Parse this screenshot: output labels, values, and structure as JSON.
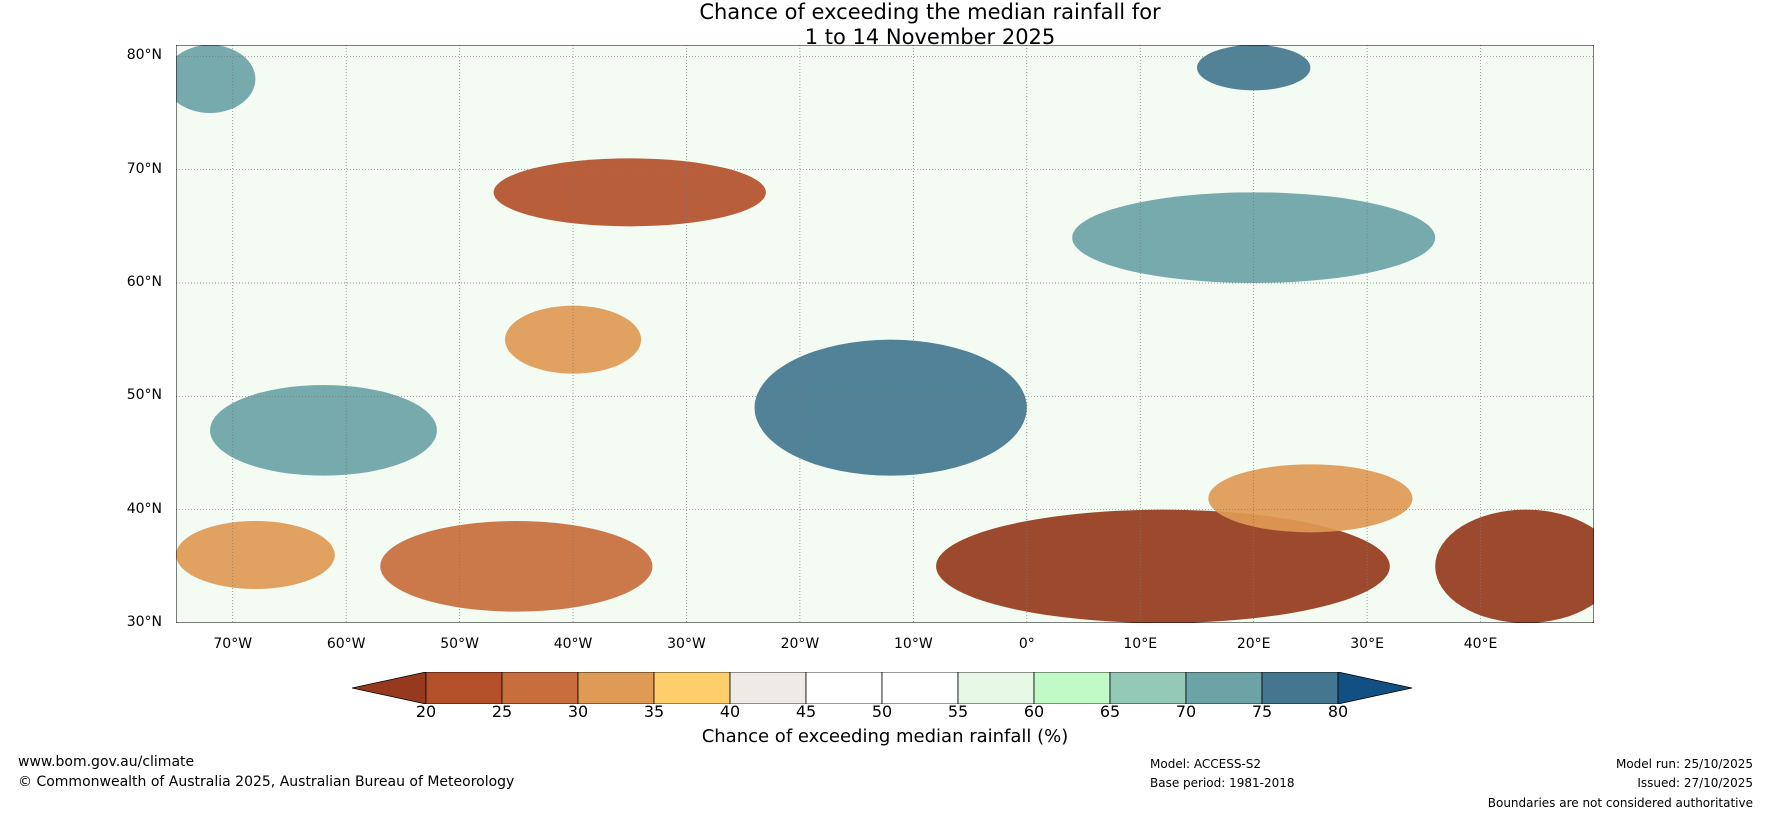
{
  "title": {
    "line1": "Chance of exceeding the median rainfall for",
    "line2": "1 to 14 November 2025"
  },
  "map": {
    "lat_labels": [
      "80°N",
      "70°N",
      "60°N",
      "50°N",
      "40°N",
      "30°N"
    ],
    "lat_values": [
      80,
      70,
      60,
      50,
      40,
      30
    ],
    "lon_labels": [
      "70°W",
      "60°W",
      "50°W",
      "40°W",
      "30°W",
      "20°W",
      "10°W",
      "0°",
      "10°E",
      "20°E",
      "30°E",
      "40°E"
    ],
    "lon_values": [
      -70,
      -60,
      -50,
      -40,
      -30,
      -20,
      -10,
      0,
      10,
      20,
      30,
      40
    ],
    "lon_range": [
      -75,
      50
    ],
    "lat_range": [
      30,
      81
    ],
    "regions": [
      {
        "name": "med-north-africa-dry",
        "lon": 12,
        "lat": 35,
        "rx": 20,
        "ry": 5,
        "bin": 0
      },
      {
        "name": "middle-east-dry",
        "lon": 44,
        "lat": 35,
        "rx": 8,
        "ry": 5,
        "bin": 0
      },
      {
        "name": "balkans-dry",
        "lon": 25,
        "lat": 41,
        "rx": 9,
        "ry": 3,
        "bin": 3
      },
      {
        "name": "greenland-dry",
        "lon": -35,
        "lat": 68,
        "rx": 12,
        "ry": 3,
        "bin": 1
      },
      {
        "name": "north-atlantic-dry",
        "lon": -40,
        "lat": 55,
        "rx": 6,
        "ry": 3,
        "bin": 3
      },
      {
        "name": "subtropical-atlantic-dry",
        "lon": -45,
        "lat": 35,
        "rx": 12,
        "ry": 4,
        "bin": 2
      },
      {
        "name": "west-atlantic-dry",
        "lon": -68,
        "lat": 36,
        "rx": 7,
        "ry": 3,
        "bin": 3
      },
      {
        "name": "britain-wet",
        "lon": -12,
        "lat": 49,
        "rx": 12,
        "ry": 6,
        "bin": 12
      },
      {
        "name": "scandinavia-wet",
        "lon": 20,
        "lat": 64,
        "rx": 16,
        "ry": 4,
        "bin": 11
      },
      {
        "name": "labrador-wet",
        "lon": -62,
        "lat": 47,
        "rx": 10,
        "ry": 4,
        "bin": 11
      },
      {
        "name": "arctic-wet",
        "lon": -72,
        "lat": 78,
        "rx": 4,
        "ry": 3,
        "bin": 11
      },
      {
        "name": "svalbard-wet",
        "lon": 20,
        "lat": 79,
        "rx": 5,
        "ry": 2,
        "bin": 12
      }
    ]
  },
  "colorbar": {
    "colors": [
      "#96391c",
      "#b3502a",
      "#c86e3d",
      "#df9a55",
      "#fece6b",
      "#eeebe6",
      "#ffffff",
      "#ffffff",
      "#e6f7e6",
      "#c2fac7",
      "#93c9b6",
      "#6da3a7",
      "#44778f",
      "#124f82"
    ],
    "tick_labels": [
      "20",
      "25",
      "30",
      "35",
      "40",
      "45",
      "50",
      "55",
      "60",
      "65",
      "70",
      "75",
      "80"
    ],
    "title": "Chance of exceeding median rainfall (%)"
  },
  "footer": {
    "website": "www.bom.gov.au/climate",
    "copyright": "© Commonwealth of Australia 2025, Australian Bureau of Meteorology",
    "model": "Model: ACCESS-S2",
    "base_period": "Base period: 1981-2018",
    "model_run": "Model run: 25/10/2025",
    "issued": "Issued: 27/10/2025",
    "disclaimer": "Boundaries are not considered authoritative"
  }
}
